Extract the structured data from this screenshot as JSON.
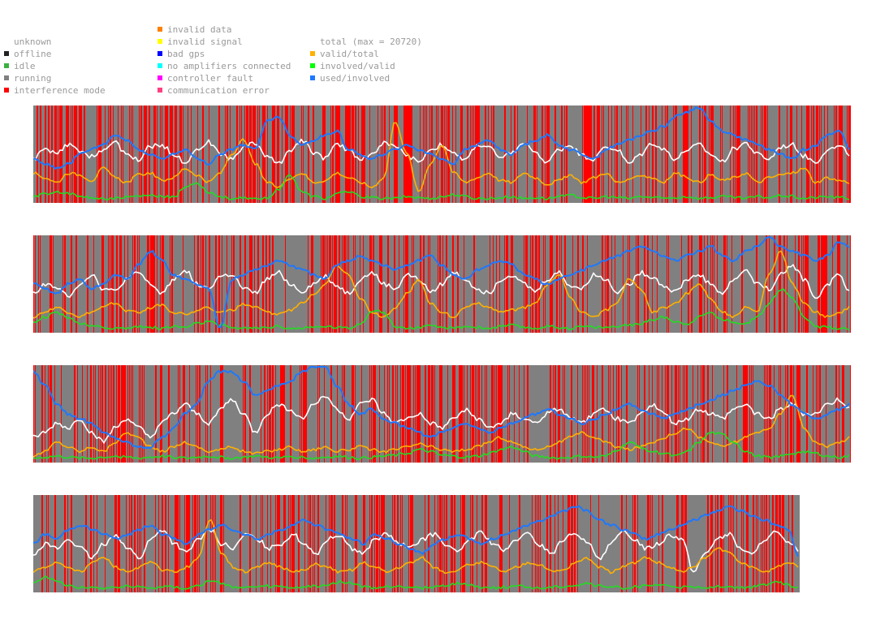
{
  "legend": {
    "col1": [
      {
        "label": "unknown",
        "color": ""
      },
      {
        "label": "offline",
        "color": "#222222"
      },
      {
        "label": "idle",
        "color": "#3cb043"
      },
      {
        "label": "running",
        "color": "#808080"
      },
      {
        "label": "interference mode",
        "color": "#ff0000"
      }
    ],
    "col2": [
      {
        "label": "invalid data",
        "color": "#ff8000"
      },
      {
        "label": "invalid signal",
        "color": "#ffff00"
      },
      {
        "label": "bad gps",
        "color": "#0000ff"
      },
      {
        "label": "no amplifiers connected",
        "color": "#00ffff"
      },
      {
        "label": "controller fault",
        "color": "#ff00ff"
      },
      {
        "label": "communication error",
        "color": "#ff4080"
      }
    ],
    "col3": [
      {
        "label": "total (max = 20720)",
        "color": ""
      },
      {
        "label": "valid/total",
        "color": "#ffb000"
      },
      {
        "label": "involved/valid",
        "color": "#00ff00"
      },
      {
        "label": "used/involved",
        "color": "#1e78ff"
      }
    ]
  },
  "chart_data": {
    "type": "line",
    "title": "",
    "background_state": "running",
    "event_state": "interference mode",
    "total_max": 20720,
    "series_order": [
      "total (max = 20720)",
      "valid/total",
      "involved/valid",
      "used/involved"
    ],
    "series_colors": {
      "total (max = 20720)": "#ffffff",
      "valid/total": "#ffb000",
      "involved/valid": "#22dd22",
      "used/involved": "#1e78ff"
    },
    "strips": [
      {
        "interference_density": 0.45,
        "total": [
          0.45,
          0.55,
          0.5,
          0.6,
          0.52,
          0.48,
          0.55,
          0.62,
          0.5,
          0.44,
          0.58,
          0.6,
          0.5,
          0.42,
          0.55,
          0.63,
          0.5,
          0.45,
          0.58,
          0.62,
          0.48,
          0.4,
          0.55,
          0.65,
          0.52,
          0.46,
          0.6,
          0.55,
          0.45,
          0.5,
          0.62,
          0.58,
          0.48,
          0.42,
          0.55,
          0.6,
          0.5,
          0.44,
          0.6,
          0.58,
          0.45,
          0.52,
          0.62,
          0.5,
          0.42,
          0.55,
          0.6,
          0.48,
          0.45,
          0.58,
          0.55,
          0.4,
          0.5,
          0.62,
          0.55,
          0.45,
          0.55,
          0.6,
          0.5,
          0.42,
          0.56,
          0.62,
          0.5,
          0.45,
          0.58,
          0.6,
          0.48,
          0.42,
          0.55,
          0.58,
          0.5
        ],
        "valid_total": [
          0.3,
          0.25,
          0.2,
          0.3,
          0.28,
          0.22,
          0.35,
          0.25,
          0.2,
          0.28,
          0.3,
          0.22,
          0.25,
          0.35,
          0.28,
          0.2,
          0.3,
          0.5,
          0.65,
          0.4,
          0.2,
          0.15,
          0.25,
          0.3,
          0.2,
          0.22,
          0.3,
          0.25,
          0.2,
          0.15,
          0.25,
          0.85,
          0.5,
          0.1,
          0.4,
          0.6,
          0.3,
          0.2,
          0.25,
          0.3,
          0.22,
          0.2,
          0.3,
          0.25,
          0.18,
          0.22,
          0.28,
          0.2,
          0.25,
          0.3,
          0.2,
          0.22,
          0.28,
          0.25,
          0.2,
          0.3,
          0.25,
          0.2,
          0.28,
          0.22,
          0.25,
          0.3,
          0.2,
          0.25,
          0.28,
          0.3,
          0.35,
          0.2,
          0.25,
          0.22,
          0.2
        ],
        "involved_valid": [
          0.05,
          0.08,
          0.1,
          0.08,
          0.05,
          0.04,
          0.03,
          0.03,
          0.04,
          0.05,
          0.06,
          0.05,
          0.04,
          0.15,
          0.2,
          0.1,
          0.05,
          0.03,
          0.03,
          0.02,
          0.04,
          0.12,
          0.28,
          0.1,
          0.05,
          0.03,
          0.08,
          0.1,
          0.05,
          0.04,
          0.03,
          0.03,
          0.05,
          0.04,
          0.03,
          0.05,
          0.07,
          0.05,
          0.03,
          0.03,
          0.04,
          0.05,
          0.03,
          0.04,
          0.03,
          0.05,
          0.06,
          0.04,
          0.03,
          0.05,
          0.04,
          0.03,
          0.05,
          0.04,
          0.03,
          0.04,
          0.05,
          0.03,
          0.04,
          0.05,
          0.04,
          0.03,
          0.05,
          0.04,
          0.06,
          0.05,
          0.03,
          0.04,
          0.05,
          0.04,
          0.03
        ],
        "used_involved": [
          0.45,
          0.4,
          0.35,
          0.4,
          0.5,
          0.55,
          0.6,
          0.7,
          0.65,
          0.55,
          0.5,
          0.45,
          0.5,
          0.55,
          0.45,
          0.4,
          0.5,
          0.55,
          0.6,
          0.55,
          0.85,
          0.9,
          0.7,
          0.6,
          0.65,
          0.7,
          0.75,
          0.55,
          0.5,
          0.45,
          0.5,
          0.55,
          0.6,
          0.55,
          0.5,
          0.45,
          0.4,
          0.55,
          0.6,
          0.65,
          0.55,
          0.5,
          0.6,
          0.65,
          0.7,
          0.6,
          0.55,
          0.5,
          0.45,
          0.55,
          0.6,
          0.65,
          0.7,
          0.75,
          0.8,
          0.9,
          0.95,
          1.0,
          0.85,
          0.75,
          0.7,
          0.65,
          0.6,
          0.55,
          0.5,
          0.45,
          0.55,
          0.6,
          0.7,
          0.75,
          0.55
        ]
      },
      {
        "interference_density": 0.35,
        "total": [
          0.4,
          0.5,
          0.45,
          0.38,
          0.5,
          0.6,
          0.45,
          0.42,
          0.55,
          0.62,
          0.5,
          0.4,
          0.55,
          0.65,
          0.5,
          0.45,
          0.58,
          0.6,
          0.45,
          0.4,
          0.55,
          0.62,
          0.5,
          0.42,
          0.5,
          0.58,
          0.48,
          0.4,
          0.55,
          0.62,
          0.5,
          0.45,
          0.6,
          0.55,
          0.42,
          0.5,
          0.62,
          0.55,
          0.45,
          0.4,
          0.55,
          0.6,
          0.5,
          0.42,
          0.55,
          0.62,
          0.48,
          0.45,
          0.6,
          0.55,
          0.42,
          0.5,
          0.62,
          0.58,
          0.48,
          0.42,
          0.55,
          0.6,
          0.5,
          0.4,
          0.55,
          0.65,
          0.5,
          0.45,
          0.6,
          0.7,
          0.55,
          0.35,
          0.5,
          0.6,
          0.4
        ],
        "valid_total": [
          0.15,
          0.2,
          0.25,
          0.2,
          0.15,
          0.2,
          0.25,
          0.3,
          0.22,
          0.2,
          0.25,
          0.28,
          0.2,
          0.18,
          0.22,
          0.25,
          0.2,
          0.22,
          0.28,
          0.25,
          0.2,
          0.18,
          0.22,
          0.3,
          0.4,
          0.5,
          0.7,
          0.6,
          0.35,
          0.2,
          0.15,
          0.25,
          0.4,
          0.55,
          0.3,
          0.2,
          0.15,
          0.25,
          0.3,
          0.25,
          0.2,
          0.22,
          0.25,
          0.3,
          0.5,
          0.6,
          0.35,
          0.2,
          0.15,
          0.22,
          0.3,
          0.55,
          0.45,
          0.2,
          0.25,
          0.3,
          0.4,
          0.5,
          0.35,
          0.2,
          0.15,
          0.25,
          0.2,
          0.6,
          0.85,
          0.5,
          0.3,
          0.2,
          0.15,
          0.2,
          0.25
        ],
        "involved_valid": [
          0.1,
          0.15,
          0.2,
          0.15,
          0.08,
          0.05,
          0.04,
          0.03,
          0.03,
          0.05,
          0.04,
          0.03,
          0.05,
          0.04,
          0.08,
          0.1,
          0.06,
          0.04,
          0.03,
          0.03,
          0.04,
          0.05,
          0.03,
          0.03,
          0.04,
          0.05,
          0.04,
          0.03,
          0.08,
          0.22,
          0.2,
          0.05,
          0.03,
          0.04,
          0.05,
          0.04,
          0.03,
          0.05,
          0.04,
          0.03,
          0.05,
          0.06,
          0.04,
          0.03,
          0.05,
          0.04,
          0.03,
          0.05,
          0.04,
          0.04,
          0.05,
          0.06,
          0.08,
          0.12,
          0.15,
          0.1,
          0.08,
          0.15,
          0.2,
          0.12,
          0.1,
          0.08,
          0.15,
          0.3,
          0.45,
          0.35,
          0.15,
          0.05,
          0.04,
          0.03,
          0.03
        ],
        "used_involved": [
          0.5,
          0.45,
          0.4,
          0.5,
          0.55,
          0.45,
          0.5,
          0.6,
          0.55,
          0.7,
          0.85,
          0.75,
          0.6,
          0.55,
          0.5,
          0.45,
          0.03,
          0.55,
          0.6,
          0.65,
          0.7,
          0.75,
          0.7,
          0.65,
          0.6,
          0.55,
          0.7,
          0.75,
          0.8,
          0.75,
          0.7,
          0.65,
          0.7,
          0.75,
          0.8,
          0.7,
          0.6,
          0.55,
          0.65,
          0.7,
          0.75,
          0.7,
          0.6,
          0.55,
          0.5,
          0.55,
          0.6,
          0.65,
          0.7,
          0.75,
          0.8,
          0.85,
          0.9,
          0.85,
          0.8,
          0.75,
          0.8,
          0.85,
          0.9,
          0.8,
          0.75,
          0.85,
          0.9,
          1.0,
          0.9,
          0.85,
          0.8,
          0.75,
          0.8,
          0.95,
          0.9
        ]
      },
      {
        "interference_density": 0.4,
        "total": [
          0.25,
          0.3,
          0.4,
          0.35,
          0.45,
          0.3,
          0.2,
          0.35,
          0.45,
          0.35,
          0.25,
          0.4,
          0.5,
          0.6,
          0.5,
          0.4,
          0.55,
          0.65,
          0.5,
          0.3,
          0.5,
          0.6,
          0.55,
          0.45,
          0.6,
          0.7,
          0.55,
          0.45,
          0.6,
          0.65,
          0.5,
          0.4,
          0.45,
          0.5,
          0.4,
          0.35,
          0.45,
          0.55,
          0.45,
          0.35,
          0.4,
          0.5,
          0.45,
          0.4,
          0.5,
          0.55,
          0.45,
          0.4,
          0.5,
          0.55,
          0.45,
          0.4,
          0.5,
          0.6,
          0.5,
          0.4,
          0.45,
          0.55,
          0.5,
          0.45,
          0.55,
          0.6,
          0.5,
          0.45,
          0.55,
          0.6,
          0.5,
          0.5,
          0.6,
          0.65,
          0.55
        ],
        "valid_total": [
          0.05,
          0.1,
          0.2,
          0.15,
          0.1,
          0.15,
          0.1,
          0.2,
          0.3,
          0.25,
          0.15,
          0.1,
          0.15,
          0.2,
          0.15,
          0.1,
          0.12,
          0.15,
          0.1,
          0.08,
          0.1,
          0.12,
          0.15,
          0.1,
          0.12,
          0.15,
          0.1,
          0.12,
          0.15,
          0.12,
          0.1,
          0.12,
          0.15,
          0.18,
          0.15,
          0.12,
          0.1,
          0.12,
          0.15,
          0.2,
          0.25,
          0.2,
          0.15,
          0.12,
          0.15,
          0.2,
          0.25,
          0.3,
          0.25,
          0.2,
          0.15,
          0.12,
          0.15,
          0.2,
          0.25,
          0.3,
          0.35,
          0.25,
          0.2,
          0.15,
          0.2,
          0.25,
          0.3,
          0.35,
          0.5,
          0.7,
          0.35,
          0.2,
          0.15,
          0.2,
          0.25
        ],
        "involved_valid": [
          0.03,
          0.04,
          0.05,
          0.04,
          0.03,
          0.03,
          0.04,
          0.05,
          0.04,
          0.03,
          0.04,
          0.05,
          0.04,
          0.03,
          0.04,
          0.05,
          0.04,
          0.03,
          0.04,
          0.05,
          0.04,
          0.03,
          0.05,
          0.04,
          0.03,
          0.04,
          0.05,
          0.04,
          0.03,
          0.04,
          0.05,
          0.06,
          0.08,
          0.12,
          0.1,
          0.06,
          0.05,
          0.04,
          0.05,
          0.08,
          0.12,
          0.15,
          0.1,
          0.05,
          0.04,
          0.03,
          0.04,
          0.05,
          0.04,
          0.05,
          0.12,
          0.2,
          0.15,
          0.1,
          0.08,
          0.05,
          0.1,
          0.2,
          0.3,
          0.28,
          0.2,
          0.1,
          0.05,
          0.04,
          0.05,
          0.08,
          0.1,
          0.08,
          0.05,
          0.04,
          0.05
        ],
        "used_involved": [
          0.95,
          0.8,
          0.6,
          0.5,
          0.45,
          0.4,
          0.3,
          0.25,
          0.2,
          0.15,
          0.15,
          0.25,
          0.35,
          0.5,
          0.6,
          0.85,
          0.95,
          0.95,
          0.85,
          0.7,
          0.75,
          0.8,
          0.85,
          0.95,
          1.0,
          1.0,
          0.8,
          0.6,
          0.5,
          0.55,
          0.45,
          0.4,
          0.35,
          0.3,
          0.25,
          0.3,
          0.35,
          0.4,
          0.35,
          0.3,
          0.35,
          0.4,
          0.45,
          0.5,
          0.55,
          0.5,
          0.45,
          0.4,
          0.45,
          0.5,
          0.55,
          0.6,
          0.55,
          0.5,
          0.45,
          0.5,
          0.55,
          0.6,
          0.65,
          0.7,
          0.75,
          0.8,
          0.85,
          0.8,
          0.7,
          0.6,
          0.5,
          0.45,
          0.5,
          0.55,
          0.6
        ]
      },
      {
        "interference_density": 0.35,
        "total": [
          0.4,
          0.5,
          0.45,
          0.55,
          0.45,
          0.35,
          0.5,
          0.6,
          0.45,
          0.35,
          0.55,
          0.65,
          0.5,
          0.4,
          0.55,
          0.65,
          0.5,
          0.45,
          0.6,
          0.55,
          0.45,
          0.5,
          0.6,
          0.5,
          0.4,
          0.55,
          0.6,
          0.45,
          0.4,
          0.55,
          0.6,
          0.5,
          0.45,
          0.55,
          0.6,
          0.5,
          0.4,
          0.55,
          0.62,
          0.5,
          0.42,
          0.55,
          0.6,
          0.48,
          0.4,
          0.55,
          0.62,
          0.5,
          0.35,
          0.5,
          0.62,
          0.55,
          0.45,
          0.5,
          0.6,
          0.55,
          0.2,
          0.4,
          0.55,
          0.6,
          0.45,
          0.38,
          0.55,
          0.62,
          0.5,
          0.42
        ],
        "valid_total": [
          0.2,
          0.25,
          0.3,
          0.25,
          0.2,
          0.3,
          0.35,
          0.25,
          0.2,
          0.25,
          0.3,
          0.22,
          0.2,
          0.25,
          0.35,
          0.75,
          0.4,
          0.25,
          0.2,
          0.25,
          0.3,
          0.25,
          0.2,
          0.22,
          0.28,
          0.25,
          0.2,
          0.22,
          0.3,
          0.25,
          0.2,
          0.25,
          0.3,
          0.35,
          0.25,
          0.2,
          0.22,
          0.28,
          0.3,
          0.25,
          0.2,
          0.25,
          0.3,
          0.28,
          0.2,
          0.22,
          0.3,
          0.35,
          0.25,
          0.2,
          0.25,
          0.3,
          0.35,
          0.3,
          0.25,
          0.2,
          0.25,
          0.35,
          0.45,
          0.4,
          0.3,
          0.25,
          0.2,
          0.25,
          0.3,
          0.25
        ],
        "involved_valid": [
          0.08,
          0.15,
          0.1,
          0.06,
          0.04,
          0.03,
          0.03,
          0.04,
          0.05,
          0.04,
          0.03,
          0.05,
          0.04,
          0.03,
          0.06,
          0.1,
          0.08,
          0.04,
          0.03,
          0.04,
          0.05,
          0.04,
          0.03,
          0.04,
          0.05,
          0.06,
          0.1,
          0.08,
          0.04,
          0.03,
          0.04,
          0.05,
          0.04,
          0.03,
          0.04,
          0.06,
          0.08,
          0.06,
          0.04,
          0.03,
          0.04,
          0.05,
          0.04,
          0.03,
          0.04,
          0.05,
          0.06,
          0.08,
          0.05,
          0.04,
          0.03,
          0.04,
          0.05,
          0.06,
          0.05,
          0.04,
          0.03,
          0.04,
          0.05,
          0.04,
          0.03,
          0.04,
          0.06,
          0.1,
          0.06,
          0.04
        ],
        "used_involved": [
          0.5,
          0.6,
          0.55,
          0.65,
          0.7,
          0.65,
          0.6,
          0.55,
          0.6,
          0.65,
          0.7,
          0.6,
          0.55,
          0.5,
          0.6,
          0.65,
          0.7,
          0.65,
          0.6,
          0.55,
          0.6,
          0.65,
          0.7,
          0.75,
          0.7,
          0.65,
          0.6,
          0.55,
          0.5,
          0.6,
          0.55,
          0.5,
          0.45,
          0.4,
          0.5,
          0.55,
          0.6,
          0.55,
          0.5,
          0.55,
          0.6,
          0.65,
          0.7,
          0.75,
          0.8,
          0.85,
          0.9,
          0.85,
          0.75,
          0.7,
          0.65,
          0.6,
          0.55,
          0.6,
          0.65,
          0.7,
          0.75,
          0.8,
          0.85,
          0.9,
          0.85,
          0.8,
          0.75,
          0.7,
          0.65,
          0.35
        ]
      }
    ]
  }
}
